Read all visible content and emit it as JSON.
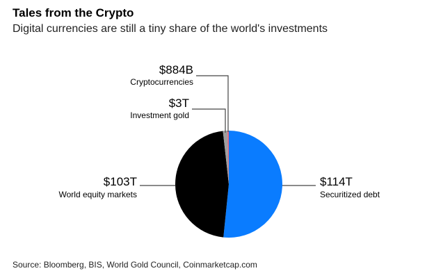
{
  "title": "Tales from the Crypto",
  "subtitle": "Digital currencies are still a tiny share of the world's investments",
  "source": "Source: Bloomberg, BIS, World Gold Council, Coinmarketcap.com",
  "chart_data": {
    "type": "pie",
    "title": "Tales from the Crypto",
    "subtitle": "Digital currencies are still a tiny share of the world's investments",
    "unit": "USD trillions",
    "slices": [
      {
        "name": "Securitized debt",
        "value": 114,
        "value_label": "$114T",
        "color": "#0a7cff"
      },
      {
        "name": "World equity markets",
        "value": 103,
        "value_label": "$103T",
        "color": "#000000"
      },
      {
        "name": "Investment gold",
        "value": 3,
        "value_label": "$3T",
        "color": "#9e9e9e"
      },
      {
        "name": "Cryptocurrencies",
        "value": 0.884,
        "value_label": "$884B",
        "color": "#e8637a"
      }
    ],
    "start_angle": "12 o'clock",
    "direction": "clockwise",
    "legend": "none (direct labels)"
  }
}
